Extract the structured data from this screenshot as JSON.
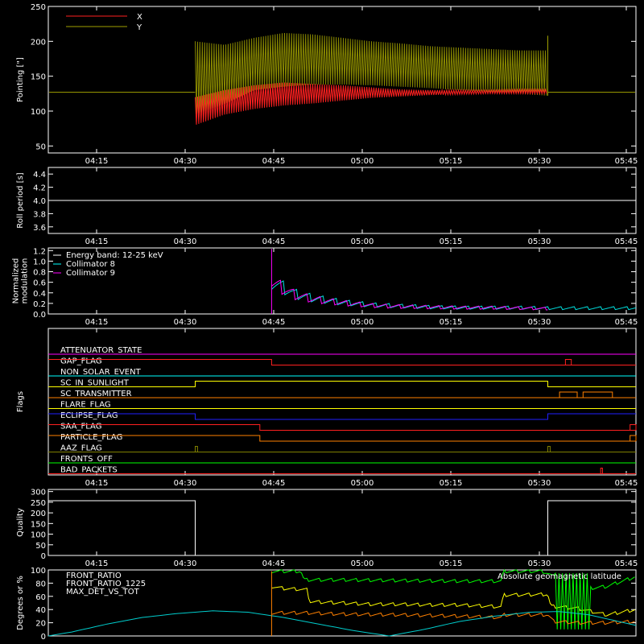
{
  "time_ticks": [
    "04:15",
    "04:30",
    "04:45",
    "05:00",
    "05:15",
    "05:30",
    "05:45"
  ],
  "chart_data": [
    {
      "type": "line",
      "ylabel": "Pointing [\"]",
      "yticks": [
        50,
        100,
        150,
        200,
        250
      ],
      "ylim": [
        40,
        250
      ],
      "xlim_minutes": [
        0,
        100
      ],
      "legend": [
        {
          "name": "X",
          "color": "#ff2020"
        },
        {
          "name": "Y",
          "color": "#a0a000"
        }
      ],
      "baseline_value": 127,
      "active_range_minutes": [
        25,
        85
      ],
      "series": [
        {
          "name": "Y",
          "color": "#8a8a00",
          "upper": [
            [
              25,
              200
            ],
            [
              30,
              195
            ],
            [
              35,
              205
            ],
            [
              40,
              212
            ],
            [
              45,
              210
            ],
            [
              50,
              205
            ],
            [
              55,
              200
            ],
            [
              60,
              197
            ],
            [
              65,
              193
            ],
            [
              70,
              191
            ],
            [
              75,
              189
            ],
            [
              80,
              187
            ],
            [
              85,
              187
            ]
          ],
          "lower": [
            [
              25,
              95
            ],
            [
              30,
              110
            ],
            [
              35,
              130
            ],
            [
              40,
              135
            ],
            [
              45,
              138
            ],
            [
              50,
              138
            ],
            [
              55,
              137
            ],
            [
              60,
              135
            ],
            [
              65,
              133
            ],
            [
              70,
              130
            ],
            [
              75,
              128
            ],
            [
              80,
              125
            ],
            [
              85,
              122
            ]
          ]
        },
        {
          "name": "X",
          "color": "#ff2020",
          "upper": [
            [
              25,
              120
            ],
            [
              30,
              130
            ],
            [
              35,
              137
            ],
            [
              40,
              141
            ],
            [
              45,
              139
            ],
            [
              50,
              137
            ],
            [
              55,
              134
            ],
            [
              60,
              131
            ],
            [
              65,
              130
            ],
            [
              70,
              130
            ],
            [
              75,
              130
            ],
            [
              80,
              131
            ],
            [
              85,
              131
            ]
          ],
          "lower": [
            [
              25,
              80
            ],
            [
              30,
              95
            ],
            [
              35,
              103
            ],
            [
              40,
              108
            ],
            [
              45,
              111
            ],
            [
              50,
              115
            ],
            [
              55,
              119
            ],
            [
              60,
              121
            ],
            [
              65,
              123
            ],
            [
              70,
              124
            ],
            [
              75,
              125
            ],
            [
              80,
              125
            ],
            [
              85,
              125
            ]
          ]
        }
      ]
    },
    {
      "type": "line",
      "ylabel": "Roll period [s]",
      "yticks": [
        "3.6",
        "3.8",
        "4.0",
        "4.2",
        "4.4"
      ],
      "ylim": [
        3.5,
        4.5
      ],
      "series": [
        {
          "name": "",
          "color": "#ffffff",
          "constant": 4.0
        }
      ]
    },
    {
      "type": "line",
      "ylabel": [
        "Normalized",
        "modulation"
      ],
      "yticks": [
        "0.0",
        "0.2",
        "0.4",
        "0.6",
        "0.8",
        "1.0",
        "1.2"
      ],
      "ylim": [
        0,
        1.25
      ],
      "legend": [
        {
          "name": "Energy band: 12-25 keV",
          "color": "#ffffff"
        },
        {
          "name": "Collimator 8",
          "color": "#00ffff"
        },
        {
          "name": "Collimator 9",
          "color": "#ff00ff"
        }
      ],
      "spike_minute": 38,
      "series": [
        {
          "name": "Collimator 8",
          "color": "#00e0e0",
          "points": [
            [
              38,
              0.62
            ],
            [
              40,
              0.5
            ],
            [
              42,
              0.38
            ],
            [
              45,
              0.3
            ],
            [
              50,
              0.22
            ],
            [
              55,
              0.17
            ],
            [
              60,
              0.15
            ],
            [
              65,
              0.13
            ],
            [
              70,
              0.12
            ],
            [
              75,
              0.12
            ],
            [
              80,
              0.12
            ],
            [
              85,
              0.11
            ],
            [
              90,
              0.11
            ],
            [
              95,
              0.11
            ],
            [
              100,
              0.11
            ]
          ]
        },
        {
          "name": "Collimator 9",
          "color": "#ff00ff",
          "points": [
            [
              38,
              0.6
            ],
            [
              40,
              0.48
            ],
            [
              42,
              0.36
            ],
            [
              45,
              0.28
            ],
            [
              50,
              0.21
            ],
            [
              55,
              0.16
            ],
            [
              60,
              0.14
            ],
            [
              65,
              0.13
            ],
            [
              70,
              0.12
            ],
            [
              75,
              0.12
            ],
            [
              80,
              0.11
            ],
            [
              85,
              0.1
            ]
          ]
        }
      ]
    },
    {
      "type": "line",
      "ylabel": "Flags",
      "flags": [
        {
          "name": "ATTENUATOR_STATE",
          "color": "#ff00ff",
          "segments": [
            [
              0,
              100,
              0
            ]
          ]
        },
        {
          "name": "GAP_FLAG",
          "color": "#ff2020",
          "segments": [
            [
              0,
              38,
              1
            ],
            [
              38,
              100,
              0
            ]
          ],
          "pulses": [
            [
              88,
              89
            ]
          ]
        },
        {
          "name": "NON_SOLAR_EVENT",
          "color": "#00ffff",
          "segments": [
            [
              0,
              100,
              0
            ]
          ]
        },
        {
          "name": "SC_IN_SUNLIGHT",
          "color": "#ffff00",
          "segments": [
            [
              0,
              25,
              0
            ],
            [
              25,
              85,
              1
            ],
            [
              85,
              100,
              0
            ]
          ]
        },
        {
          "name": "SC_TRANSMITTER",
          "color": "#ff8000",
          "segments": [
            [
              0,
              87,
              0
            ],
            [
              87,
              100,
              0
            ]
          ],
          "pulses": [
            [
              87,
              90
            ],
            [
              91,
              96
            ]
          ]
        },
        {
          "name": "FLARE_FLAG",
          "color": "#ffff00",
          "segments": [
            [
              0,
              100,
              0
            ]
          ]
        },
        {
          "name": "ECLIPSE_FLAG",
          "color": "#2020ff",
          "segments": [
            [
              0,
              25,
              1
            ],
            [
              25,
              85,
              0
            ],
            [
              85,
              100,
              1
            ]
          ]
        },
        {
          "name": "SAA_FLAG",
          "color": "#ff2020",
          "segments": [
            [
              0,
              36,
              1
            ],
            [
              36,
              100,
              0
            ]
          ],
          "pulses": [
            [
              99,
              100
            ]
          ]
        },
        {
          "name": "PARTICLE_FLAG",
          "color": "#ff8000",
          "segments": [
            [
              0,
              36,
              1
            ],
            [
              36,
              100,
              0
            ]
          ],
          "pulses": [
            [
              99,
              100
            ]
          ]
        },
        {
          "name": "AAZ_FLAG",
          "color": "#808000",
          "segments": [
            [
              0,
              100,
              0
            ]
          ],
          "pulses": [
            [
              25,
              25.4
            ],
            [
              85,
              85.4
            ]
          ]
        },
        {
          "name": "FRONTS_OFF",
          "color": "#00ff00",
          "segments": [
            [
              0,
              100,
              0
            ]
          ]
        },
        {
          "name": "BAD_PACKETS",
          "color": "#ff2020",
          "segments": [
            [
              0,
              100,
              0
            ]
          ],
          "pulses": [
            [
              94,
              94.3
            ]
          ]
        }
      ]
    },
    {
      "type": "line",
      "ylabel": "Quality",
      "yticks": [
        0,
        50,
        100,
        150,
        200,
        250,
        300
      ],
      "ylim": [
        0,
        310
      ],
      "series": [
        {
          "name": "",
          "color": "#ffffff",
          "points": [
            [
              0,
              257
            ],
            [
              25,
              257
            ],
            [
              25,
              0
            ],
            [
              85,
              0
            ],
            [
              85,
              257
            ],
            [
              100,
              257
            ]
          ]
        }
      ]
    },
    {
      "type": "line",
      "ylabel": "Degrees or %",
      "yticks": [
        0,
        20,
        40,
        60,
        80,
        100
      ],
      "ylim": [
        0,
        100
      ],
      "legend": [
        {
          "name": "FRONT_RATIO",
          "color": "#ffff00"
        },
        {
          "name": "FRONT_RATIO_1225",
          "color": "#00ff00"
        },
        {
          "name": "MAX_DET_VS_TOT",
          "color": "#ff8000"
        }
      ],
      "right_label": {
        "text": "Absolute geomagnetic latitude",
        "color": "#00ffff"
      },
      "series": [
        {
          "name": "FRONT_RATIO",
          "color": "#ffff00",
          "points": [
            [
              38,
              75
            ],
            [
              40,
              72
            ],
            [
              44,
              70
            ],
            [
              44.5,
              52
            ],
            [
              50,
              50
            ],
            [
              55,
              48
            ],
            [
              60,
              48
            ],
            [
              65,
              47
            ],
            [
              70,
              47
            ],
            [
              75,
              45
            ],
            [
              77,
              44
            ],
            [
              77.5,
              62
            ],
            [
              85,
              63
            ],
            [
              85.5,
              45
            ],
            [
              90,
              42
            ],
            [
              95,
              32
            ],
            [
              100,
              40
            ]
          ]
        },
        {
          "name": "FRONT_RATIO_1225",
          "color": "#00ff00",
          "points": [
            [
              38,
              98
            ],
            [
              43,
              98
            ],
            [
              43.5,
              85
            ],
            [
              50,
              85
            ],
            [
              60,
              84
            ],
            [
              70,
              83
            ],
            [
              77,
              83
            ],
            [
              77.5,
              98
            ],
            [
              84,
              98
            ],
            [
              85,
              95
            ],
            [
              90,
              70
            ],
            [
              95,
              75
            ],
            [
              100,
              90
            ]
          ]
        },
        {
          "name": "MAX_DET_VS_TOT",
          "color": "#ff8000",
          "points": [
            [
              38,
              35
            ],
            [
              44,
              35
            ],
            [
              50,
              33
            ],
            [
              60,
              32
            ],
            [
              70,
              30
            ],
            [
              77,
              28
            ],
            [
              77.5,
              32
            ],
            [
              85,
              32
            ],
            [
              86,
              22
            ],
            [
              90,
              20
            ],
            [
              95,
              20
            ],
            [
              100,
              22
            ]
          ]
        },
        {
          "name": "Absolute geomagnetic latitude",
          "color": "#00cccc",
          "points": [
            [
              0,
              0
            ],
            [
              4,
              6
            ],
            [
              10,
              18
            ],
            [
              16,
              28
            ],
            [
              22,
              34
            ],
            [
              28,
              38
            ],
            [
              34,
              36
            ],
            [
              40,
              28
            ],
            [
              46,
              18
            ],
            [
              52,
              8
            ],
            [
              58,
              0
            ],
            [
              64,
              10
            ],
            [
              70,
              22
            ],
            [
              76,
              30
            ],
            [
              82,
              36
            ],
            [
              87,
              37
            ],
            [
              92,
              32
            ],
            [
              96,
              24
            ],
            [
              100,
              16
            ]
          ]
        }
      ]
    }
  ]
}
